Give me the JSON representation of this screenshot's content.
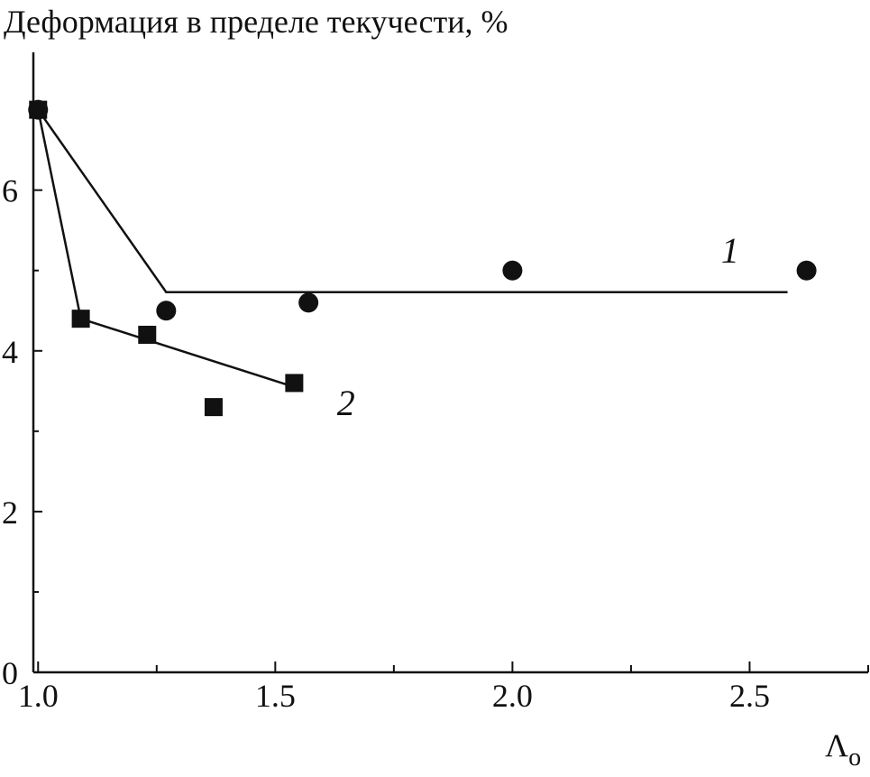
{
  "chart_data": {
    "type": "scatter",
    "ylabel": "Деформация в пределе текучести, %",
    "xlabel": "Λ",
    "xlabel_subscript": "о",
    "xlim": [
      0.99,
      2.75
    ],
    "ylim": [
      0,
      7.4
    ],
    "x_ticks_major": [
      1.0,
      1.5,
      2.0,
      2.5
    ],
    "x_ticks_major_labels": [
      "1.0",
      "1.5",
      "2.0",
      "2.5"
    ],
    "x_ticks_minor": [
      1.25,
      1.75,
      2.25,
      2.75
    ],
    "y_ticks_major": [
      0,
      2,
      4,
      6
    ],
    "y_ticks_major_labels": [
      "0",
      "2",
      "4",
      "6"
    ],
    "y_ticks_minor": [
      1,
      3,
      5,
      7
    ],
    "grid": false,
    "series": [
      {
        "name": "1",
        "marker": "circle",
        "points": [
          {
            "x": 1.0,
            "y": 7.0
          },
          {
            "x": 1.27,
            "y": 4.5
          },
          {
            "x": 1.57,
            "y": 4.6
          },
          {
            "x": 2.0,
            "y": 5.0
          },
          {
            "x": 2.62,
            "y": 5.0
          }
        ],
        "fit_line": [
          {
            "x": 1.0,
            "y": 7.0
          },
          {
            "x": 1.27,
            "y": 4.73
          },
          {
            "x": 2.58,
            "y": 4.73
          }
        ]
      },
      {
        "name": "2",
        "marker": "square",
        "points": [
          {
            "x": 1.0,
            "y": 7.0
          },
          {
            "x": 1.09,
            "y": 4.4
          },
          {
            "x": 1.23,
            "y": 4.2
          },
          {
            "x": 1.37,
            "y": 3.3
          },
          {
            "x": 1.54,
            "y": 3.6
          }
        ],
        "fit_line": [
          {
            "x": 1.0,
            "y": 7.0
          },
          {
            "x": 1.09,
            "y": 4.4
          },
          {
            "x": 1.54,
            "y": 3.55
          }
        ]
      }
    ],
    "colors": {
      "ink": "#111111",
      "background": "#ffffff"
    }
  }
}
